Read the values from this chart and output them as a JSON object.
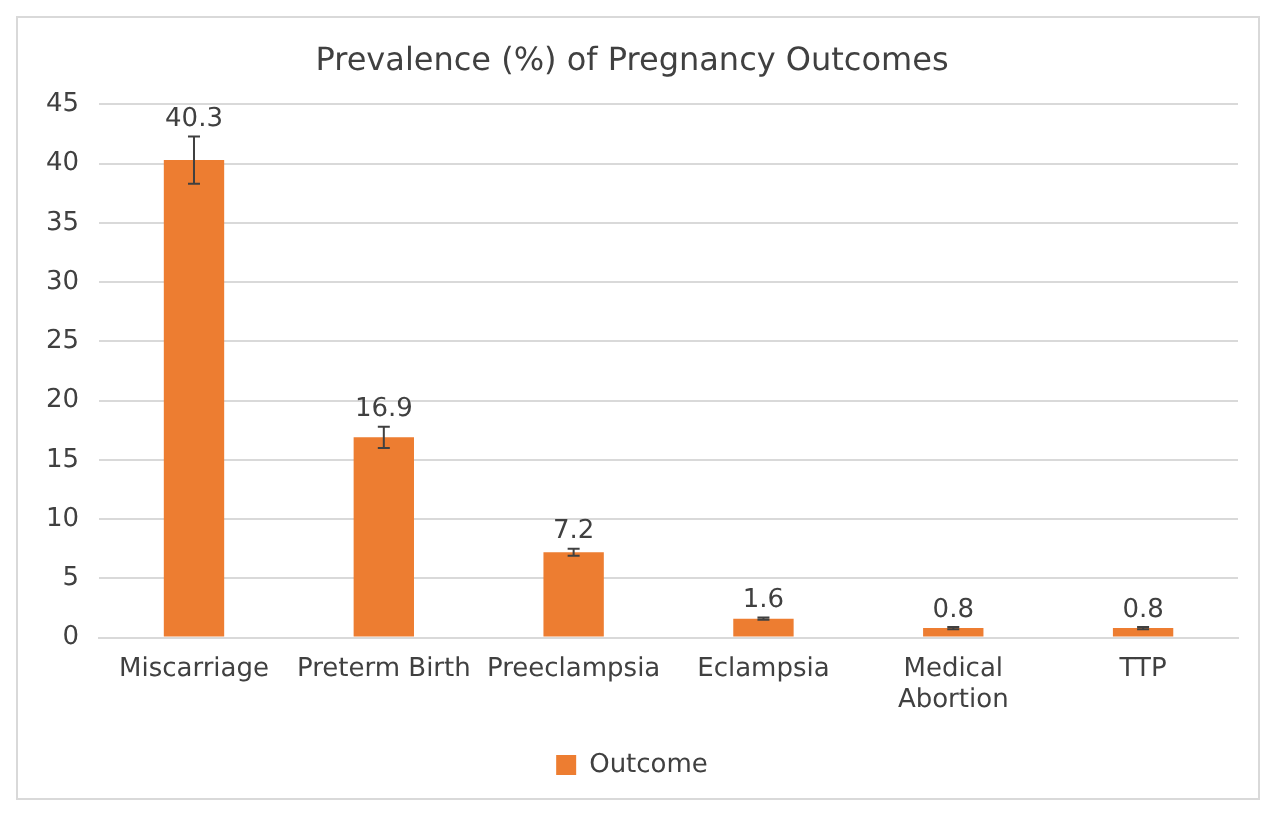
{
  "chart_data": {
    "type": "bar",
    "title": "Prevalence (%) of Pregnancy Outcomes",
    "categories": [
      "Miscarriage",
      "Preterm Birth",
      "Preeclampsia",
      "Eclampsia",
      "Medical Abortion",
      "TTP"
    ],
    "series": [
      {
        "name": "Outcome",
        "color": "#ed7d31",
        "values": [
          40.3,
          16.9,
          7.2,
          1.6,
          0.8,
          0.8
        ],
        "errors": [
          2,
          0.9,
          0.3,
          0.1,
          0.1,
          0.1
        ]
      }
    ],
    "ylim": [
      0,
      45
    ],
    "yticks": [
      0,
      5,
      10,
      15,
      20,
      25,
      30,
      35,
      40,
      45
    ],
    "grid": "y",
    "legend": "bottom",
    "data_labels": true
  }
}
